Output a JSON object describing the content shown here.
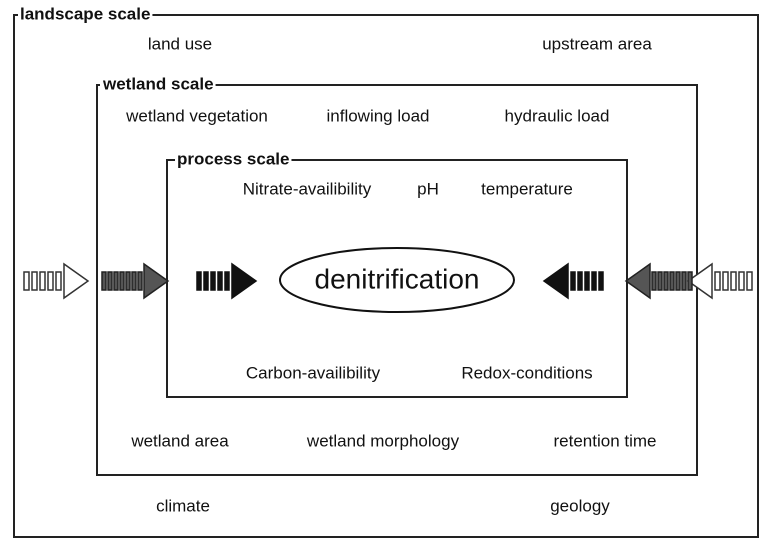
{
  "landscape_scale": {
    "title": "landscape scale",
    "top": [
      "land use",
      "upstream area"
    ],
    "bottom": [
      "climate",
      "geology"
    ]
  },
  "wetland_scale": {
    "title": "wetland scale",
    "top": [
      "wetland vegetation",
      "inflowing load",
      "hydraulic load"
    ],
    "bottom": [
      "wetland area",
      "wetland morphology",
      "retention time"
    ]
  },
  "process_scale": {
    "title": "process scale",
    "top": [
      "Nitrate-availibility",
      "pH",
      "temperature"
    ],
    "bottom": [
      "Carbon-availibility",
      "Redox-conditions"
    ]
  },
  "center": "denitrification"
}
